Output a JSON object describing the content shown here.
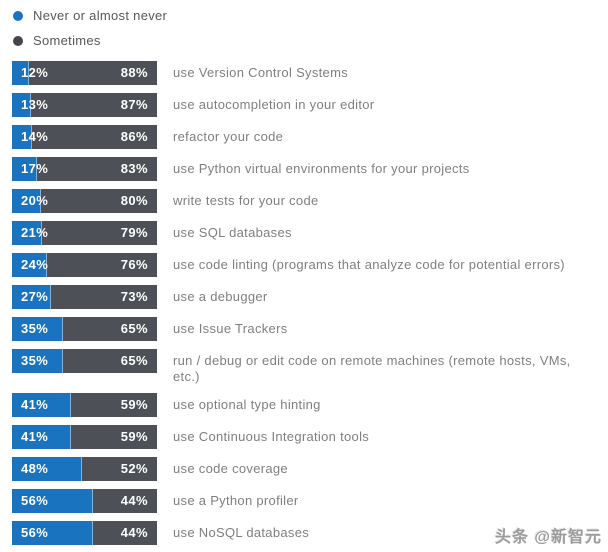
{
  "legend": {
    "items": [
      {
        "label": "Never or almost never",
        "color": "#1a73be"
      },
      {
        "label": "Sometimes",
        "color": "#43464b"
      }
    ]
  },
  "colors": {
    "never_segment": "#1a73be",
    "sometimes_segment": "#4d5056",
    "percent_text": "#ffffff",
    "row_label_text": "#7d7f82",
    "legend_text": "#55575a"
  },
  "watermark": {
    "text": "头条 @新智元"
  },
  "chart_data": {
    "type": "bar",
    "orientation": "horizontal",
    "stacked": true,
    "unit": "%",
    "xlim": [
      0,
      100
    ],
    "legend_position": "top-left",
    "value_labels": "inside",
    "categories": [
      "use Version Control Systems",
      "use autocompletion in your editor",
      "refactor your code",
      "use Python virtual environments for your projects",
      "write tests for your code",
      "use SQL databases",
      "use code linting (programs that analyze code for potential errors)",
      "use a debugger",
      "use Issue Trackers",
      "run / debug or edit code on remote machines (remote hosts, VMs, etc.)",
      "use optional type hinting",
      "use Continuous Integration tools",
      "use code coverage",
      "use a Python profiler",
      "use NoSQL databases"
    ],
    "series": [
      {
        "name": "Never or almost never",
        "values": [
          12,
          13,
          14,
          17,
          20,
          21,
          24,
          27,
          35,
          35,
          41,
          41,
          48,
          56,
          56
        ]
      },
      {
        "name": "Sometimes",
        "values": [
          88,
          87,
          86,
          83,
          80,
          79,
          76,
          73,
          65,
          65,
          59,
          59,
          52,
          44,
          44
        ]
      }
    ]
  }
}
